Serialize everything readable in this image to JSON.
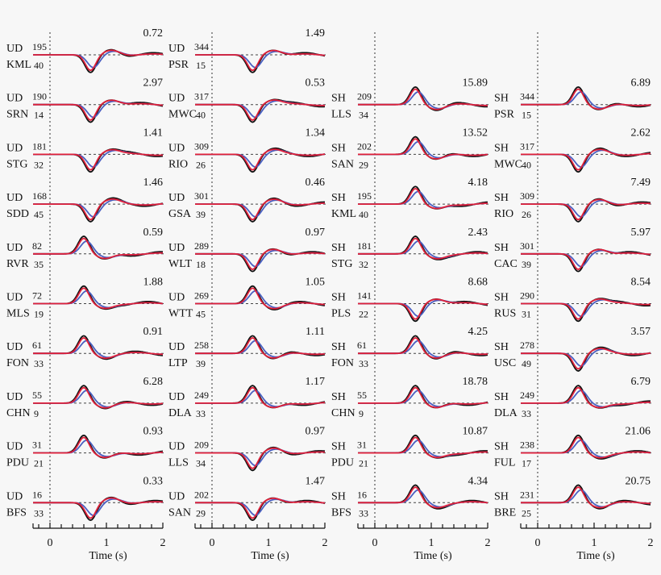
{
  "chart_data": {
    "type": "line",
    "xlabel": "Time (s)",
    "xlim": [
      -0.3,
      2
    ],
    "xticks": [
      "0",
      "1",
      "2"
    ],
    "colors": {
      "observed": "#111111",
      "synthetic_1": "#4a5fc1",
      "synthetic_2": "#e0203a"
    },
    "columns": [
      {
        "panels": [
          {
            "component": "UD",
            "station": "KML",
            "azimuth": "195",
            "distance": "40",
            "amplitude": "0.72",
            "polarity": "down"
          },
          {
            "component": "UD",
            "station": "SRN",
            "azimuth": "190",
            "distance": "14",
            "amplitude": "2.97",
            "polarity": "down"
          },
          {
            "component": "UD",
            "station": "STG",
            "azimuth": "181",
            "distance": "32",
            "amplitude": "1.41",
            "polarity": "down"
          },
          {
            "component": "UD",
            "station": "SDD",
            "azimuth": "168",
            "distance": "45",
            "amplitude": "1.46",
            "polarity": "down"
          },
          {
            "component": "UD",
            "station": "RVR",
            "azimuth": "82",
            "distance": "35",
            "amplitude": "0.59",
            "polarity": "up"
          },
          {
            "component": "UD",
            "station": "MLS",
            "azimuth": "72",
            "distance": "19",
            "amplitude": "1.88",
            "polarity": "up"
          },
          {
            "component": "UD",
            "station": "FON",
            "azimuth": "61",
            "distance": "33",
            "amplitude": "0.91",
            "polarity": "up"
          },
          {
            "component": "UD",
            "station": "CHN",
            "azimuth": "55",
            "distance": "9",
            "amplitude": "6.28",
            "polarity": "up"
          },
          {
            "component": "UD",
            "station": "PDU",
            "azimuth": "31",
            "distance": "21",
            "amplitude": "0.93",
            "polarity": "up"
          },
          {
            "component": "UD",
            "station": "BFS",
            "azimuth": "16",
            "distance": "33",
            "amplitude": "0.33",
            "polarity": "down"
          }
        ]
      },
      {
        "panels": [
          {
            "component": "UD",
            "station": "PSR",
            "azimuth": "344",
            "distance": "15",
            "amplitude": "1.49",
            "polarity": "down"
          },
          {
            "component": "UD",
            "station": "MWC",
            "azimuth": "317",
            "distance": "40",
            "amplitude": "0.53",
            "polarity": "down"
          },
          {
            "component": "UD",
            "station": "RIO",
            "azimuth": "309",
            "distance": "26",
            "amplitude": "1.34",
            "polarity": "down"
          },
          {
            "component": "UD",
            "station": "GSA",
            "azimuth": "301",
            "distance": "39",
            "amplitude": "0.46",
            "polarity": "down"
          },
          {
            "component": "UD",
            "station": "WLT",
            "azimuth": "289",
            "distance": "18",
            "amplitude": "0.97",
            "polarity": "down"
          },
          {
            "component": "UD",
            "station": "WTT",
            "azimuth": "269",
            "distance": "45",
            "amplitude": "1.05",
            "polarity": "up"
          },
          {
            "component": "UD",
            "station": "LTP",
            "azimuth": "258",
            "distance": "39",
            "amplitude": "1.11",
            "polarity": "up"
          },
          {
            "component": "UD",
            "station": "DLA",
            "azimuth": "249",
            "distance": "33",
            "amplitude": "1.17",
            "polarity": "up"
          },
          {
            "component": "UD",
            "station": "LLS",
            "azimuth": "209",
            "distance": "34",
            "amplitude": "0.97",
            "polarity": "down"
          },
          {
            "component": "UD",
            "station": "SAN",
            "azimuth": "202",
            "distance": "29",
            "amplitude": "1.47",
            "polarity": "down"
          }
        ]
      },
      {
        "panels": [
          {
            "component": "SH",
            "station": "LLS",
            "azimuth": "209",
            "distance": "34",
            "amplitude": "15.89",
            "polarity": "up"
          },
          {
            "component": "SH",
            "station": "SAN",
            "azimuth": "202",
            "distance": "29",
            "amplitude": "13.52",
            "polarity": "up"
          },
          {
            "component": "SH",
            "station": "KML",
            "azimuth": "195",
            "distance": "40",
            "amplitude": "4.18",
            "polarity": "up"
          },
          {
            "component": "SH",
            "station": "STG",
            "azimuth": "181",
            "distance": "32",
            "amplitude": "2.43",
            "polarity": "up"
          },
          {
            "component": "SH",
            "station": "PLS",
            "azimuth": "141",
            "distance": "22",
            "amplitude": "8.68",
            "polarity": "down"
          },
          {
            "component": "SH",
            "station": "FON",
            "azimuth": "61",
            "distance": "33",
            "amplitude": "4.25",
            "polarity": "up"
          },
          {
            "component": "SH",
            "station": "CHN",
            "azimuth": "55",
            "distance": "9",
            "amplitude": "18.78",
            "polarity": "up"
          },
          {
            "component": "SH",
            "station": "PDU",
            "azimuth": "31",
            "distance": "21",
            "amplitude": "10.87",
            "polarity": "up"
          },
          {
            "component": "SH",
            "station": "BFS",
            "azimuth": "16",
            "distance": "33",
            "amplitude": "4.34",
            "polarity": "up"
          }
        ]
      },
      {
        "panels": [
          {
            "component": "SH",
            "station": "PSR",
            "azimuth": "344",
            "distance": "15",
            "amplitude": "6.89",
            "polarity": "up"
          },
          {
            "component": "SH",
            "station": "MWC",
            "azimuth": "317",
            "distance": "40",
            "amplitude": "2.62",
            "polarity": "down"
          },
          {
            "component": "SH",
            "station": "RIO",
            "azimuth": "309",
            "distance": "26",
            "amplitude": "7.49",
            "polarity": "down"
          },
          {
            "component": "SH",
            "station": "CAC",
            "azimuth": "301",
            "distance": "39",
            "amplitude": "5.97",
            "polarity": "down"
          },
          {
            "component": "SH",
            "station": "RUS",
            "azimuth": "290",
            "distance": "31",
            "amplitude": "8.54",
            "polarity": "down"
          },
          {
            "component": "SH",
            "station": "USC",
            "azimuth": "278",
            "distance": "49",
            "amplitude": "3.57",
            "polarity": "down"
          },
          {
            "component": "SH",
            "station": "DLA",
            "azimuth": "249",
            "distance": "33",
            "amplitude": "6.79",
            "polarity": "up"
          },
          {
            "component": "SH",
            "station": "FUL",
            "azimuth": "238",
            "distance": "17",
            "amplitude": "21.06",
            "polarity": "up"
          },
          {
            "component": "SH",
            "station": "BRE",
            "azimuth": "231",
            "distance": "25",
            "amplitude": "20.75",
            "polarity": "up"
          }
        ]
      }
    ]
  }
}
